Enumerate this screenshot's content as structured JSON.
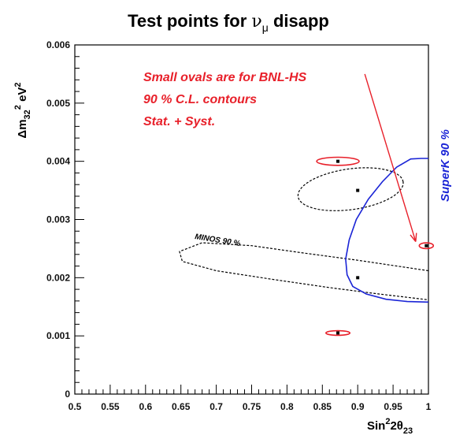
{
  "chart_data": {
    "type": "scatter",
    "title_main": "Test points for ",
    "title_symbol": "ν",
    "title_sub": "μ",
    "title_tail": " disapp",
    "xlabel": {
      "base": "Sin",
      "sup": "2",
      "mid": "2θ",
      "sub": "23"
    },
    "ylabel": {
      "pre": "Δm",
      "sub": "32",
      "sup": "2",
      "post": " eV",
      "sup2": "2"
    },
    "xlim": [
      0.5,
      1.0
    ],
    "ylim": [
      0,
      0.006
    ],
    "x_ticks": [
      "0.5",
      "0.55",
      "0.6",
      "0.65",
      "0.7",
      "0.75",
      "0.8",
      "0.85",
      "0.9",
      "0.95",
      "1"
    ],
    "y_ticks": [
      "0",
      "0.001",
      "0.002",
      "0.003",
      "0.004",
      "0.005",
      "0.006"
    ],
    "annotations": [
      "Small ovals are for BNL-HS",
      "90 % C.L. contours",
      "Stat. + Syst."
    ],
    "minos_label": "MINOS 90 %",
    "superk_label": "SuperK 90 %",
    "colors": {
      "bnl": "#e8202a",
      "superk": "#1a24d6",
      "minos": "#000000",
      "arrow": "#e8202a"
    },
    "test_points": [
      {
        "x": 0.872,
        "y": 0.004
      },
      {
        "x": 0.9,
        "y": 0.0035
      },
      {
        "x": 0.9,
        "y": 0.002
      },
      {
        "x": 0.872,
        "y": 0.00105
      },
      {
        "x": 0.997,
        "y": 0.00255
      }
    ],
    "bnl_contours": [
      {
        "cx": 0.872,
        "cy": 0.004,
        "rx": 0.03,
        "ry": 7e-05
      },
      {
        "cx": 0.872,
        "cy": 0.00105,
        "rx": 0.017,
        "ry": 4e-05
      },
      {
        "cx": 0.997,
        "cy": 0.00255,
        "rx": 0.01,
        "ry": 5e-05
      }
    ],
    "minos_contours": [
      {
        "type": "ellipse",
        "cx": 0.89,
        "cy": 0.00352,
        "rx": 0.075,
        "ry": 0.00035,
        "angle": 8
      },
      {
        "type": "open",
        "points": [
          [
            1.0,
            0.00212
          ],
          [
            0.9,
            0.0023
          ],
          [
            0.82,
            0.00243
          ],
          [
            0.75,
            0.00255
          ],
          [
            0.68,
            0.0026
          ],
          [
            0.648,
            0.00245
          ],
          [
            0.652,
            0.00228
          ],
          [
            0.7,
            0.00212
          ],
          [
            0.78,
            0.00197
          ],
          [
            0.86,
            0.00183
          ],
          [
            0.93,
            0.00172
          ],
          [
            1.0,
            0.00162
          ]
        ]
      }
    ],
    "superk_contour": [
      [
        1.0,
        0.00405
      ],
      [
        0.99,
        0.00405
      ],
      [
        0.975,
        0.00404
      ],
      [
        0.955,
        0.0039
      ],
      [
        0.935,
        0.00365
      ],
      [
        0.915,
        0.00335
      ],
      [
        0.898,
        0.003
      ],
      [
        0.888,
        0.00265
      ],
      [
        0.883,
        0.00232
      ],
      [
        0.885,
        0.00205
      ],
      [
        0.893,
        0.00185
      ],
      [
        0.912,
        0.00172
      ],
      [
        0.94,
        0.00163
      ],
      [
        0.97,
        0.00159
      ],
      [
        1.0,
        0.00158
      ]
    ],
    "arrow": {
      "from": [
        0.91,
        0.0055
      ],
      "to": [
        0.982,
        0.00262
      ]
    }
  }
}
